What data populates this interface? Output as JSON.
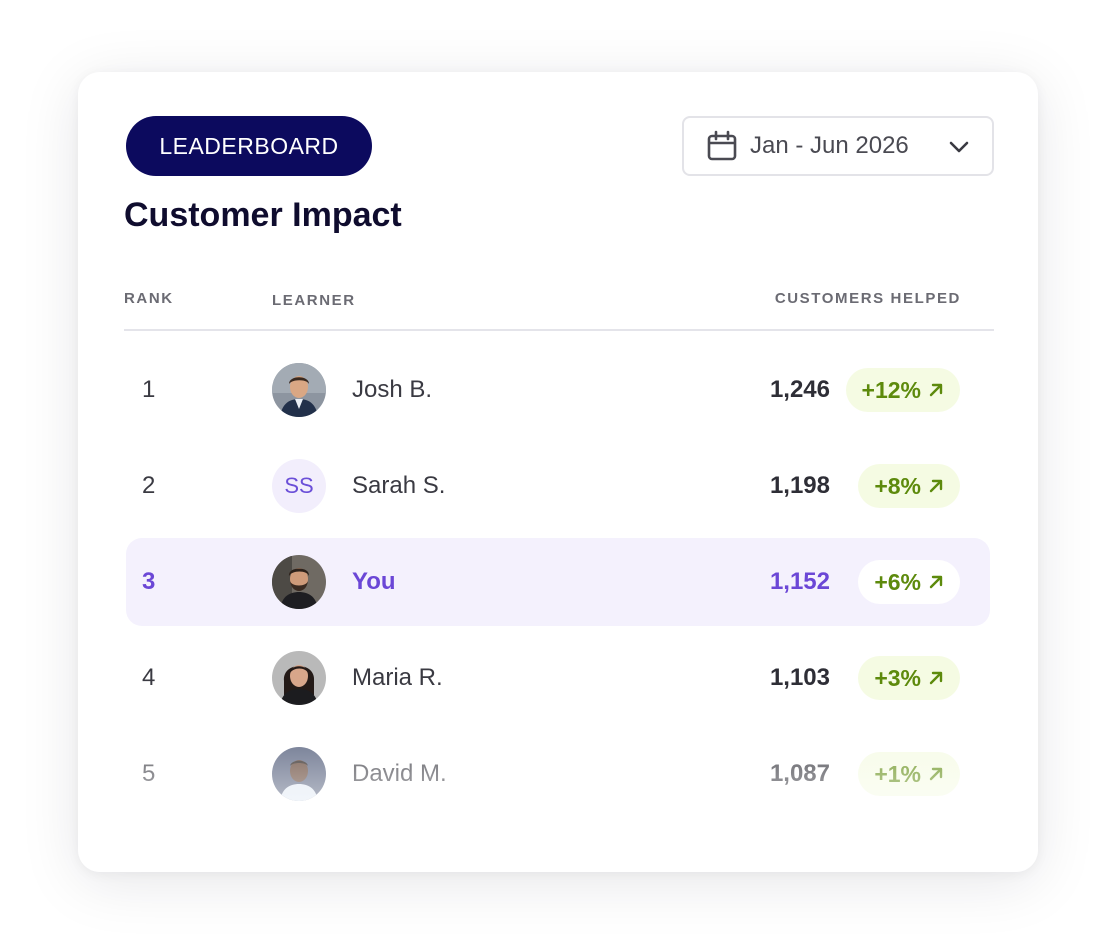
{
  "header": {
    "badge_label": "LEADERBOARD",
    "date_range": "Jan - Jun 2026",
    "title": "Customer Impact"
  },
  "columns": {
    "rank": "RANK",
    "learner": "LEARNER",
    "customers_helped": "CUSTOMERS HELPED"
  },
  "rows": [
    {
      "rank": "1",
      "name": "Josh B.",
      "avatar": "photo",
      "value": "1,246",
      "change": "+12%"
    },
    {
      "rank": "2",
      "name": "Sarah S.",
      "avatar": "initials",
      "initials": "SS",
      "value": "1,198",
      "change": "+8%"
    },
    {
      "rank": "3",
      "name": "You",
      "avatar": "photo",
      "value": "1,152",
      "change": "+6%",
      "highlighted": true
    },
    {
      "rank": "4",
      "name": "Maria R.",
      "avatar": "photo",
      "value": "1,103",
      "change": "+3%"
    },
    {
      "rank": "5",
      "name": "David M.",
      "avatar": "photo",
      "value": "1,087",
      "change": "+1%"
    }
  ],
  "icons": {
    "date_select": [
      "calendar-icon",
      "chevron-down-icon"
    ],
    "badge": "arrow-up-right-icon"
  },
  "colors": {
    "pill_bg": "#0c0a5e",
    "title": "#0f0c2e",
    "highlight_bg": "#f4f1fd",
    "highlight_text": "#6b47d6",
    "positive_badge_bg": "#f5fbe3",
    "positive_text": "#5d8a0c"
  }
}
